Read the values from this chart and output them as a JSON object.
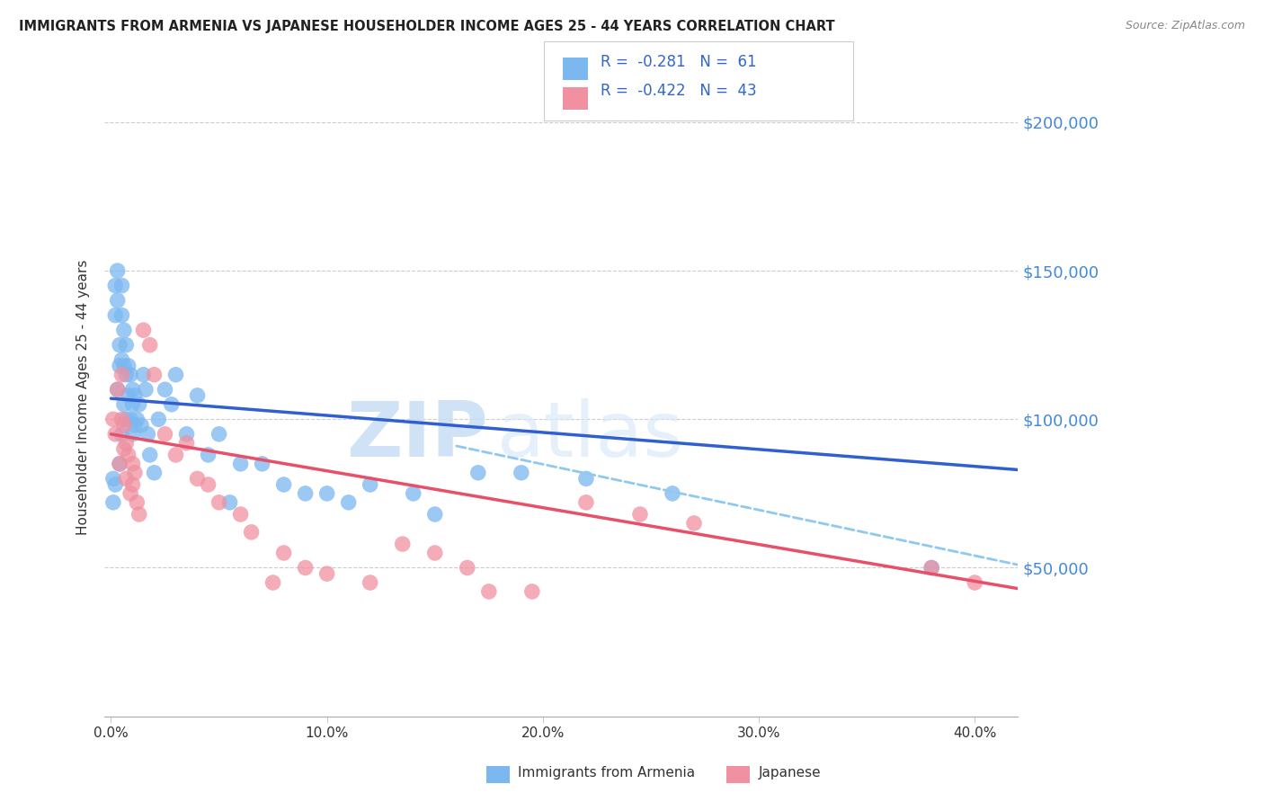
{
  "title": "IMMIGRANTS FROM ARMENIA VS JAPANESE HOUSEHOLDER INCOME AGES 25 - 44 YEARS CORRELATION CHART",
  "source": "Source: ZipAtlas.com",
  "ylabel": "Householder Income Ages 25 - 44 years",
  "xlabel_ticks": [
    "0.0%",
    "10.0%",
    "20.0%",
    "30.0%",
    "40.0%"
  ],
  "xlabel_vals": [
    0.0,
    0.1,
    0.2,
    0.3,
    0.4
  ],
  "ytick_labels": [
    "$50,000",
    "$100,000",
    "$150,000",
    "$200,000"
  ],
  "ytick_vals": [
    50000,
    100000,
    150000,
    200000
  ],
  "ylim": [
    0,
    215000
  ],
  "xlim": [
    -0.003,
    0.42
  ],
  "r1": "-0.281",
  "n1": "61",
  "r2": "-0.422",
  "n2": "43",
  "color_blue": "#7bb8f0",
  "color_pink": "#f090a0",
  "color_blue_line": "#3060d0",
  "color_pink_line": "#e8506a",
  "color_blue_dash": "#90c8f0",
  "legend_label1": "Immigrants from Armenia",
  "legend_label2": "Japanese",
  "watermark_zip": "ZIP",
  "watermark_atlas": "atlas",
  "blue_scatter_x": [
    0.001,
    0.001,
    0.002,
    0.002,
    0.002,
    0.003,
    0.003,
    0.003,
    0.004,
    0.004,
    0.004,
    0.005,
    0.005,
    0.005,
    0.005,
    0.006,
    0.006,
    0.006,
    0.007,
    0.007,
    0.007,
    0.008,
    0.008,
    0.009,
    0.009,
    0.01,
    0.01,
    0.01,
    0.011,
    0.011,
    0.012,
    0.013,
    0.014,
    0.015,
    0.016,
    0.017,
    0.018,
    0.02,
    0.022,
    0.025,
    0.028,
    0.03,
    0.035,
    0.04,
    0.045,
    0.05,
    0.055,
    0.06,
    0.07,
    0.08,
    0.09,
    0.1,
    0.11,
    0.12,
    0.14,
    0.15,
    0.17,
    0.19,
    0.22,
    0.26,
    0.38
  ],
  "blue_scatter_y": [
    80000,
    72000,
    145000,
    135000,
    78000,
    150000,
    140000,
    110000,
    125000,
    118000,
    85000,
    145000,
    135000,
    120000,
    95000,
    130000,
    118000,
    105000,
    125000,
    115000,
    100000,
    118000,
    108000,
    115000,
    100000,
    110000,
    105000,
    95000,
    108000,
    98000,
    100000,
    105000,
    98000,
    115000,
    110000,
    95000,
    88000,
    82000,
    100000,
    110000,
    105000,
    115000,
    95000,
    108000,
    88000,
    95000,
    72000,
    85000,
    85000,
    78000,
    75000,
    75000,
    72000,
    78000,
    75000,
    68000,
    82000,
    82000,
    80000,
    75000,
    50000
  ],
  "pink_scatter_x": [
    0.001,
    0.002,
    0.003,
    0.004,
    0.005,
    0.005,
    0.006,
    0.006,
    0.007,
    0.007,
    0.008,
    0.009,
    0.01,
    0.01,
    0.011,
    0.012,
    0.013,
    0.015,
    0.018,
    0.02,
    0.025,
    0.03,
    0.035,
    0.04,
    0.045,
    0.05,
    0.06,
    0.065,
    0.075,
    0.08,
    0.09,
    0.1,
    0.12,
    0.135,
    0.15,
    0.165,
    0.175,
    0.195,
    0.22,
    0.245,
    0.27,
    0.38,
    0.4
  ],
  "pink_scatter_y": [
    100000,
    95000,
    110000,
    85000,
    115000,
    100000,
    98000,
    90000,
    92000,
    80000,
    88000,
    75000,
    85000,
    78000,
    82000,
    72000,
    68000,
    130000,
    125000,
    115000,
    95000,
    88000,
    92000,
    80000,
    78000,
    72000,
    68000,
    62000,
    45000,
    55000,
    50000,
    48000,
    45000,
    58000,
    55000,
    50000,
    42000,
    42000,
    72000,
    68000,
    65000,
    50000,
    45000
  ],
  "blue_line_x0": 0.0,
  "blue_line_x1": 0.42,
  "blue_line_y0": 107000,
  "blue_line_y1": 83000,
  "pink_line_x0": 0.0,
  "pink_line_x1": 0.42,
  "pink_line_y0": 95000,
  "pink_line_y1": 43000,
  "dash_line_x0": 0.16,
  "dash_line_x1": 0.42,
  "dash_line_y0": 91000,
  "dash_line_y1": 51000
}
